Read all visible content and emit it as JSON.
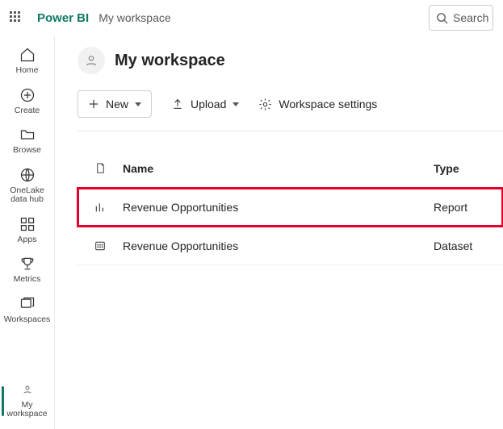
{
  "header": {
    "brand": "Power BI",
    "breadcrumb": "My workspace",
    "search_label": "Search"
  },
  "rail": {
    "home": "Home",
    "create": "Create",
    "browse": "Browse",
    "onelake": "OneLake\ndata hub",
    "apps": "Apps",
    "metrics": "Metrics",
    "workspaces": "Workspaces",
    "my_workspace": "My\nworkspace"
  },
  "workspace": {
    "title": "My workspace"
  },
  "toolbar": {
    "new_label": "New",
    "upload_label": "Upload",
    "settings_label": "Workspace settings"
  },
  "table": {
    "columns": {
      "name": "Name",
      "type": "Type"
    },
    "rows": [
      {
        "name": "Revenue Opportunities",
        "type": "Report",
        "icon": "report",
        "highlight": true
      },
      {
        "name": "Revenue Opportunities",
        "type": "Dataset",
        "icon": "dataset",
        "highlight": false
      }
    ]
  },
  "colors": {
    "brand": "#117865",
    "highlight_border": "#e3002b"
  }
}
